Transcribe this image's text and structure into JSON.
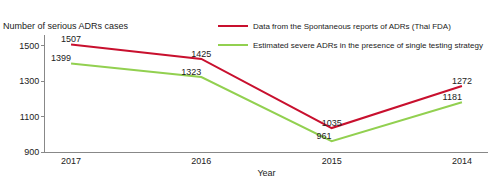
{
  "chart_data": {
    "type": "line",
    "y_label": "Number of serious ADRs cases",
    "x_label": "Year",
    "categories": [
      "2017",
      "2016",
      "2015",
      "2014"
    ],
    "series": [
      {
        "name": "Data from the Spontaneous reports of ADRs (Thai FDA)",
        "color": "#c8102e",
        "values": [
          1507,
          1425,
          1035,
          1272
        ]
      },
      {
        "name": "Estimated severe ADRs in the presence of single testing strategy",
        "color": "#92d050",
        "values": [
          1399,
          1323,
          961,
          1181
        ]
      }
    ],
    "ylim": [
      900,
      1560
    ],
    "yticks": [
      900,
      1100,
      1300,
      1500
    ],
    "grid": false,
    "legend": "top right",
    "data_labels": true
  }
}
